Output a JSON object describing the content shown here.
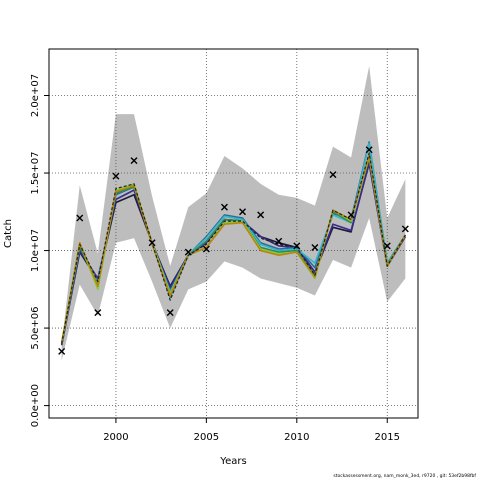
{
  "chart_data": {
    "type": "line",
    "xlabel": "Years",
    "ylabel": "Catch",
    "xlim": [
      1996.3,
      2016.7
    ],
    "ylim": [
      -800000,
      23000000
    ],
    "x_ticks": [
      2000,
      2005,
      2010,
      2015
    ],
    "x_tick_labels": [
      "2000",
      "2005",
      "2010",
      "2015"
    ],
    "y_ticks": [
      0,
      5000000,
      10000000,
      15000000,
      20000000
    ],
    "y_tick_labels": [
      "0.0e+00",
      "5.0e+06",
      "1.0e+07",
      "1.5e+07",
      "2.0e+07"
    ],
    "grid": "dotted",
    "x": [
      1997,
      1998,
      1999,
      2000,
      2001,
      2002,
      2003,
      2004,
      2005,
      2006,
      2007,
      2008,
      2009,
      2010,
      2011,
      2012,
      2013,
      2014,
      2015,
      2016
    ],
    "band": {
      "upper": [
        3900000,
        14200000,
        9800000,
        18800000,
        18800000,
        13500000,
        9000000,
        12800000,
        13700000,
        16100000,
        15300000,
        14300000,
        13600000,
        13400000,
        12900000,
        16700000,
        16000000,
        21900000,
        12100000,
        14600000
      ],
      "lower": [
        2900000,
        7800000,
        5800000,
        10500000,
        10800000,
        8000000,
        5000000,
        7500000,
        8000000,
        9300000,
        8900000,
        8200000,
        7900000,
        7600000,
        7100000,
        9400000,
        8900000,
        12100000,
        6700000,
        8200000
      ]
    },
    "observed": {
      "marker": "x",
      "values": [
        3500000,
        12100000,
        6000000,
        14800000,
        15800000,
        10500000,
        6000000,
        9900000,
        10100000,
        12800000,
        12500000,
        12300000,
        10600000,
        10300000,
        10200000,
        14900000,
        12300000,
        16500000,
        10300000,
        11400000
      ]
    },
    "series": [
      {
        "color": "#1b1b3a",
        "values": [
          3900000,
          9900000,
          8100000,
          13100000,
          13600000,
          10500000,
          7700000,
          9700000,
          10600000,
          12000000,
          11900000,
          10900000,
          10500000,
          10200000,
          8600000,
          11500000,
          11200000,
          15700000,
          9000000,
          10900000
        ]
      },
      {
        "color": "#3b2a8c",
        "values": [
          3900000,
          10000000,
          8200000,
          13300000,
          13900000,
          10500000,
          7600000,
          9700000,
          10500000,
          12000000,
          11900000,
          10900000,
          10300000,
          10200000,
          8600000,
          11700000,
          11300000,
          15600000,
          9000000,
          10900000
        ]
      },
      {
        "color": "#2a6e9c",
        "values": [
          4000000,
          10200000,
          8000000,
          13600000,
          14100000,
          10500000,
          7400000,
          9700000,
          10900000,
          12300000,
          12100000,
          10500000,
          10100000,
          10200000,
          8900000,
          12400000,
          12000000,
          17000000,
          9200000,
          11000000
        ]
      },
      {
        "color": "#35b7c9",
        "values": [
          4000000,
          10300000,
          7900000,
          13700000,
          14200000,
          10500000,
          7300000,
          9700000,
          10800000,
          12200000,
          12000000,
          10400000,
          10000000,
          10100000,
          9200000,
          12300000,
          11800000,
          16900000,
          9200000,
          11000000
        ]
      },
      {
        "color": "#2e8b57",
        "values": [
          4000000,
          10300000,
          7700000,
          13700000,
          14100000,
          10500000,
          7000000,
          9700000,
          10600000,
          12000000,
          11900000,
          10200000,
          9900000,
          10000000,
          8400000,
          12500000,
          11800000,
          16200000,
          9100000,
          11000000
        ]
      },
      {
        "color": "#86c93a",
        "values": [
          4100000,
          10500000,
          7500000,
          13900000,
          14300000,
          10500000,
          7200000,
          9700000,
          10200000,
          11800000,
          11900000,
          10100000,
          9800000,
          9900000,
          8200000,
          12600000,
          11900000,
          16000000,
          9000000,
          11000000
        ]
      },
      {
        "color": "#b8860b",
        "values": [
          4000000,
          10500000,
          7700000,
          13800000,
          14200000,
          10400000,
          7100000,
          9700000,
          10200000,
          11700000,
          11800000,
          10000000,
          9700000,
          9900000,
          8300000,
          12600000,
          12000000,
          16100000,
          9000000,
          11000000
        ]
      },
      {
        "color": "#222222",
        "dashed": true,
        "values": [
          4000000,
          10400000,
          8000000,
          14000000,
          14300000,
          10500000,
          6800000,
          9700000,
          10400000,
          11900000,
          11900000,
          10800000,
          10400000,
          10200000,
          8400000,
          12600000,
          12000000,
          16300000,
          9000000,
          11000000
        ]
      }
    ]
  },
  "footer_text": "stockassessment.org, nam_monk_3ed, r9720 , git: 53ef2b98fbf"
}
